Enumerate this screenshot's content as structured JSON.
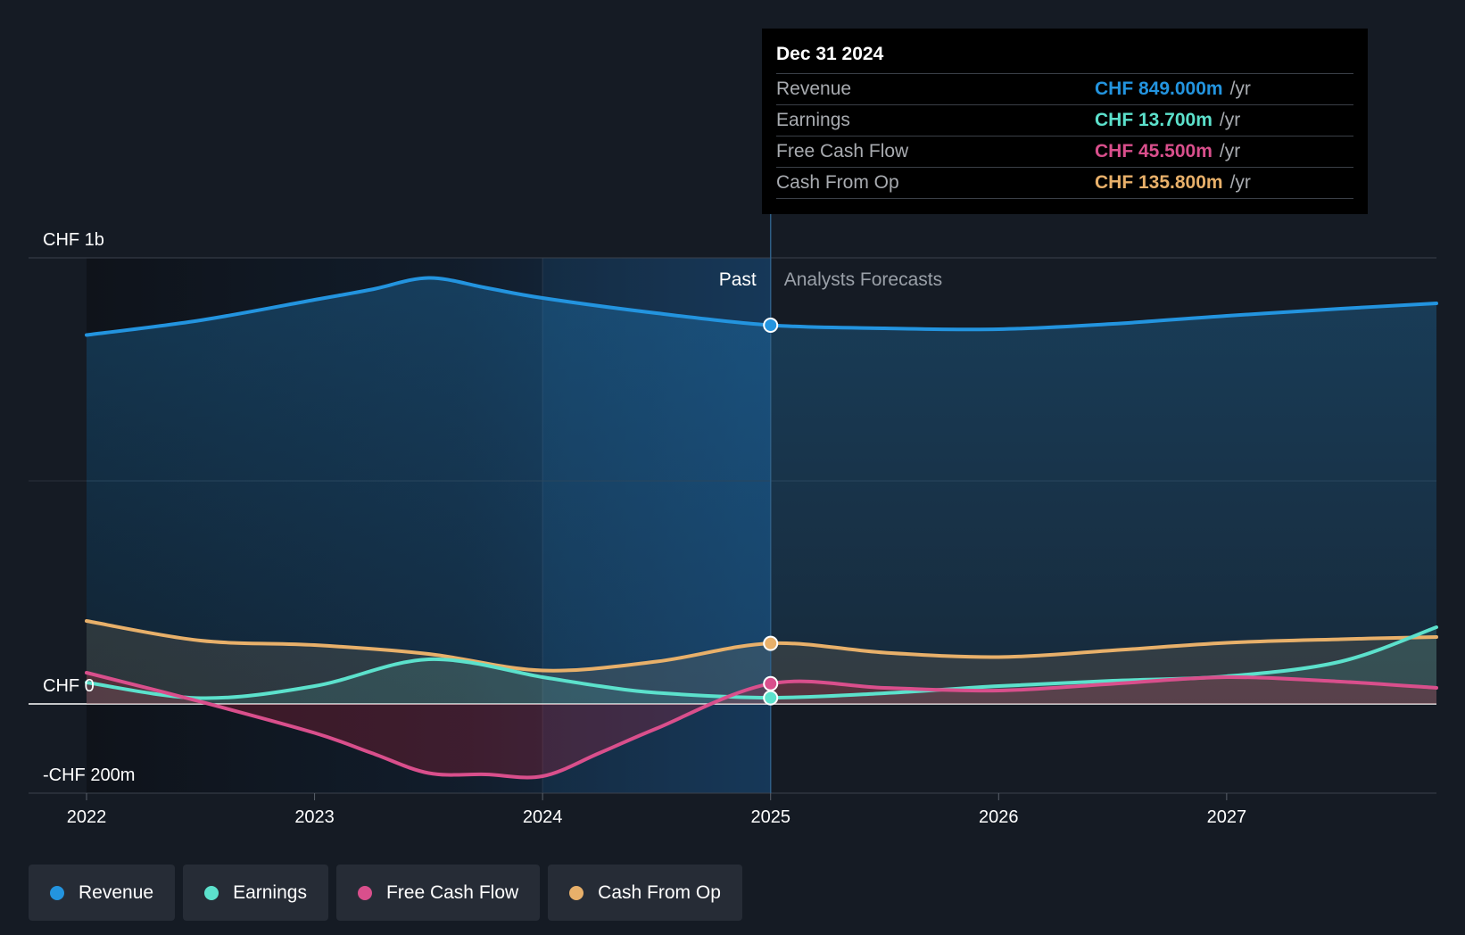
{
  "chart_data": {
    "type": "line",
    "title": "",
    "x_label": "",
    "y_label": "",
    "x_range": [
      2022.0,
      2027.92
    ],
    "y_range": [
      -200,
      1000
    ],
    "divider_x": 2025.0,
    "y_tick_labels": [
      "CHF 1b",
      "CHF 0",
      "-CHF 200m"
    ],
    "y_tick_values": [
      1000,
      0,
      -200
    ],
    "x_ticks": [
      "2022",
      "2023",
      "2024",
      "2025",
      "2026",
      "2027"
    ],
    "x_tick_values": [
      2022,
      2023,
      2024,
      2025,
      2026,
      2027
    ],
    "section_labels": {
      "past": "Past",
      "forecast": "Analysts Forecasts"
    },
    "series": [
      {
        "name": "Revenue",
        "color": "#2394df",
        "x": [
          2022.0,
          2022.5,
          2023.0,
          2023.25,
          2023.5,
          2023.75,
          2024.0,
          2024.5,
          2025.0,
          2025.5,
          2026.0,
          2026.5,
          2027.0,
          2027.5,
          2027.92
        ],
        "y": [
          827,
          860,
          906,
          929,
          955,
          933,
          910,
          876,
          849,
          842,
          840,
          852,
          870,
          886,
          898
        ]
      },
      {
        "name": "Earnings",
        "color": "#5ce1cc",
        "x": [
          2022.0,
          2022.5,
          2023.0,
          2023.5,
          2024.0,
          2024.25,
          2024.5,
          2025.0,
          2025.5,
          2026.0,
          2026.5,
          2027.0,
          2027.5,
          2027.92
        ],
        "y": [
          48,
          13,
          40,
          100,
          60,
          40,
          25,
          14,
          24,
          40,
          52,
          62,
          95,
          172
        ]
      },
      {
        "name": "Free Cash Flow",
        "color": "#d94f8c",
        "x": [
          2022.0,
          2022.5,
          2023.0,
          2023.25,
          2023.5,
          2023.75,
          2024.0,
          2024.25,
          2024.5,
          2025.0,
          2025.5,
          2026.0,
          2026.5,
          2027.0,
          2027.5,
          2027.92
        ],
        "y": [
          70,
          5,
          -65,
          -110,
          -155,
          -158,
          -162,
          -110,
          -55,
          45.5,
          36,
          30,
          45,
          60,
          50,
          36
        ]
      },
      {
        "name": "Cash From Op",
        "color": "#e8b06a",
        "x": [
          2022.0,
          2022.5,
          2023.0,
          2023.5,
          2024.0,
          2024.5,
          2025.0,
          2025.5,
          2026.0,
          2026.5,
          2027.0,
          2027.5,
          2027.92
        ],
        "y": [
          186,
          142,
          132,
          112,
          75,
          95,
          135.8,
          115,
          105,
          120,
          137,
          145,
          150
        ]
      }
    ],
    "highlight": {
      "x": 2025.0,
      "values": {
        "Revenue": 849.0,
        "Earnings": 13.7,
        "Free Cash Flow": 45.5,
        "Cash From Op": 135.8
      }
    }
  },
  "tooltip": {
    "date": "Dec 31 2024",
    "unit": "/yr",
    "rows": [
      {
        "label": "Revenue",
        "value": "CHF 849.000m",
        "color": "#2394df"
      },
      {
        "label": "Earnings",
        "value": "CHF 13.700m",
        "color": "#5ce1cc"
      },
      {
        "label": "Free Cash Flow",
        "value": "CHF 45.500m",
        "color": "#d94f8c"
      },
      {
        "label": "Cash From Op",
        "value": "CHF 135.800m",
        "color": "#e8b06a"
      }
    ]
  },
  "legend": [
    {
      "label": "Revenue",
      "color": "#2394df"
    },
    {
      "label": "Earnings",
      "color": "#5ce1cc"
    },
    {
      "label": "Free Cash Flow",
      "color": "#d94f8c"
    },
    {
      "label": "Cash From Op",
      "color": "#e8b06a"
    }
  ]
}
